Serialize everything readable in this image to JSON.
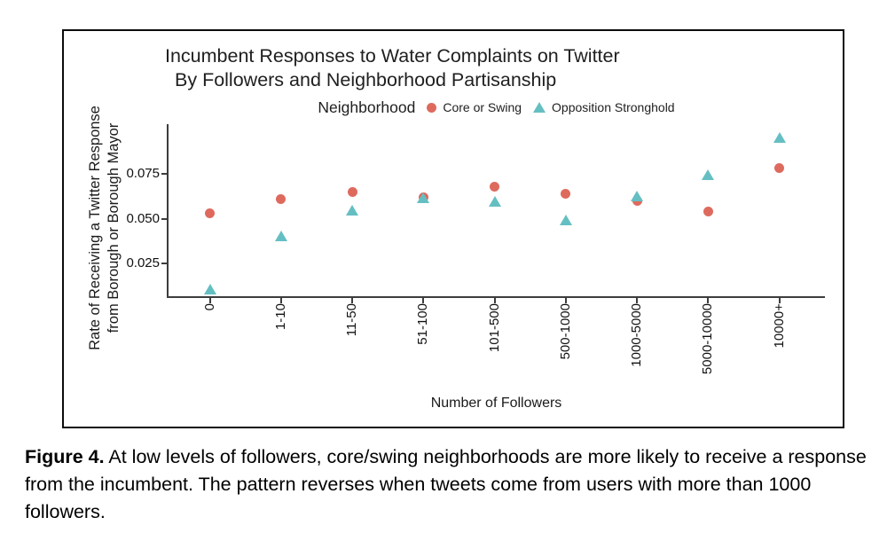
{
  "figure": {
    "caption_label": "Figure 4.",
    "caption_text": " At low levels of followers, core/swing neighborhoods are more likely to receive a response from the incumbent. The pattern reverses when tweets come from users with more than 1000 followers."
  },
  "chart_data": {
    "type": "scatter",
    "title_line1": "Incumbent Responses to Water Complaints on Twitter",
    "title_line2": "By Followers and Neighborhood Partisanship",
    "legend_title": "Neighborhood",
    "legend_position": "top",
    "grid": false,
    "xlabel": "Number of Followers",
    "ylabel_line1": "Rate of Receiving a Twitter Response",
    "ylabel_line2": "from Borough or Borough Mayor",
    "categories": [
      "0",
      "1-10",
      "11-50",
      "51-100",
      "101-500",
      "500-1000",
      "1000-5000",
      "5000-10000",
      "10000+"
    ],
    "y_ticks": [
      0.025,
      0.05,
      0.075
    ],
    "y_tick_labels": [
      "0.025",
      "0.050",
      "0.075"
    ],
    "ylim": [
      0.005,
      0.1
    ],
    "series": [
      {
        "name": "Core or Swing",
        "marker": "circle",
        "color": "#de6a5e",
        "values": [
          0.053,
          0.061,
          0.065,
          0.062,
          0.068,
          0.064,
          0.06,
          0.054,
          0.078
        ]
      },
      {
        "name": "Opposition Stronghold",
        "marker": "triangle",
        "color": "#65bfc2",
        "values": [
          0.01,
          0.04,
          0.054,
          0.061,
          0.059,
          0.049,
          0.062,
          0.074,
          0.095
        ]
      }
    ]
  }
}
